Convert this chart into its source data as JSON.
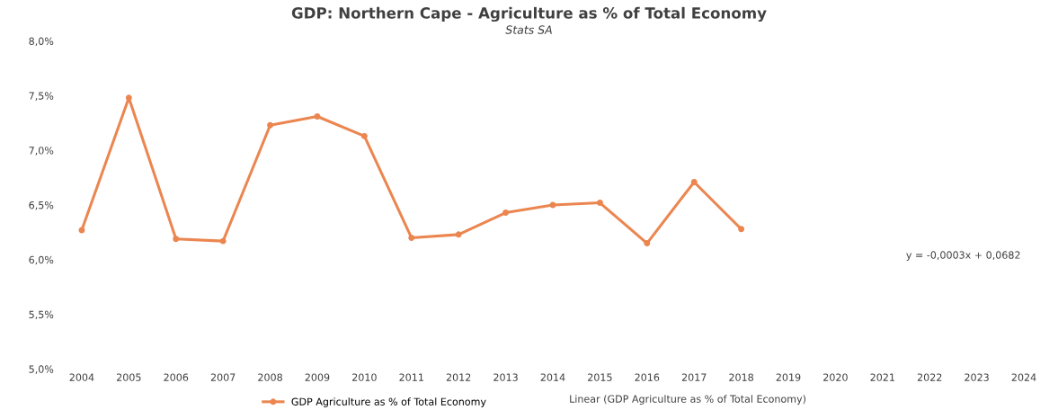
{
  "chart_data": {
    "type": "line",
    "title": "GDP: Northern Cape - Agriculture as % of Total Economy",
    "subtitle": "Stats SA",
    "categories": [
      "2004",
      "2005",
      "2006",
      "2007",
      "2008",
      "2009",
      "2010",
      "2011",
      "2012",
      "2013",
      "2014",
      "2015",
      "2016",
      "2017",
      "2018",
      "2019",
      "2020",
      "2021",
      "2022",
      "2023",
      "2024"
    ],
    "series": [
      {
        "name": "GDP Agriculture as % of Total Economy",
        "color": "#eb8650",
        "values": [
          6.27,
          7.48,
          6.19,
          6.17,
          7.23,
          7.31,
          7.13,
          6.2,
          6.23,
          6.43,
          6.5,
          6.52,
          6.15,
          6.71,
          6.28,
          null,
          null,
          null,
          null,
          null,
          null
        ]
      }
    ],
    "ylim": [
      5.0,
      8.0
    ],
    "yticks": [
      {
        "value": 5.0,
        "label": "5,0%"
      },
      {
        "value": 5.5,
        "label": "5,5%"
      },
      {
        "value": 6.0,
        "label": "6,0%"
      },
      {
        "value": 6.5,
        "label": "6,5%"
      },
      {
        "value": 7.0,
        "label": "7,0%"
      },
      {
        "value": 7.5,
        "label": "7,5%"
      },
      {
        "value": 8.0,
        "label": "8,0%"
      }
    ],
    "annotations": [
      "y = -0,0003x + 0,0682",
      "Linear (GDP Agriculture as % of Total Economy)"
    ],
    "marker": "circle",
    "line_style": "solid",
    "legend": "bottom",
    "grid": false
  }
}
